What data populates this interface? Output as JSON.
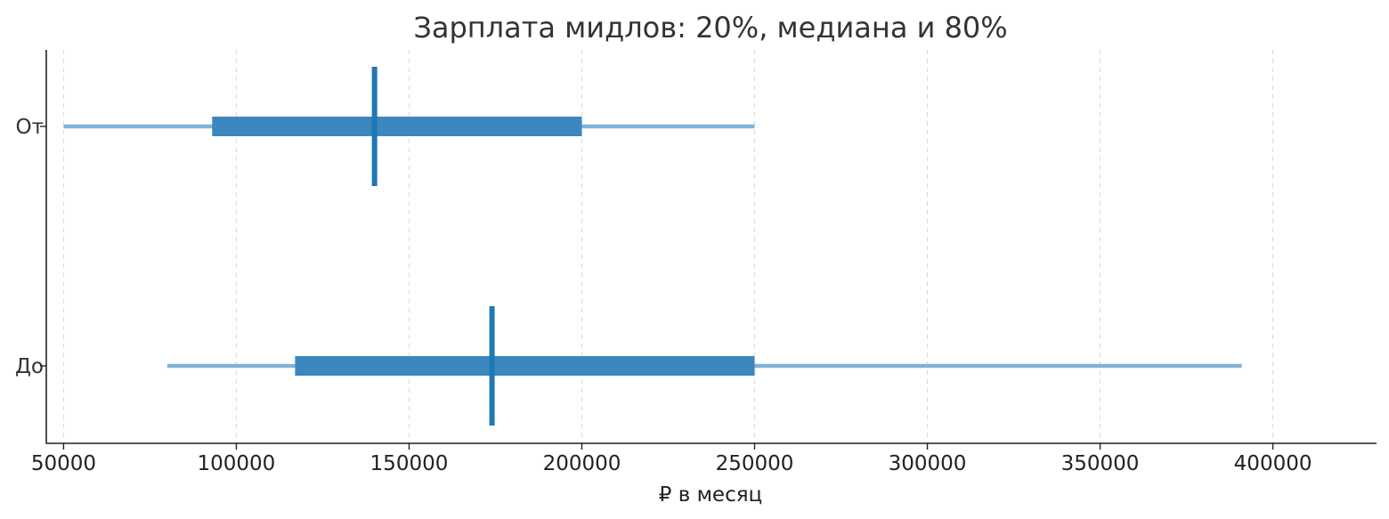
{
  "chart_data": {
    "type": "range",
    "title": "Зарплата мидлов: 20%, медиана и 80%",
    "xlabel": "₽ в месяц",
    "ylabel": "",
    "xlim": [
      45000,
      430000
    ],
    "x_ticks": [
      50000,
      100000,
      150000,
      200000,
      250000,
      300000,
      350000,
      400000
    ],
    "grid": "vertical-dashed",
    "legend": "none",
    "series": [
      {
        "name": "От",
        "min": 50000,
        "p20": 93000,
        "median": 140000,
        "p80": 200000,
        "max": 250000
      },
      {
        "name": "До",
        "min": 80000,
        "p20": 117000,
        "median": 174000,
        "p80": 250000,
        "max": 391000
      }
    ],
    "colors": {
      "whisker": "#7fb3d9",
      "box": "#3c87c0",
      "median": "#1f77b4",
      "grid": "#d8d8d8",
      "axis": "#222222",
      "text": "#333333"
    }
  }
}
